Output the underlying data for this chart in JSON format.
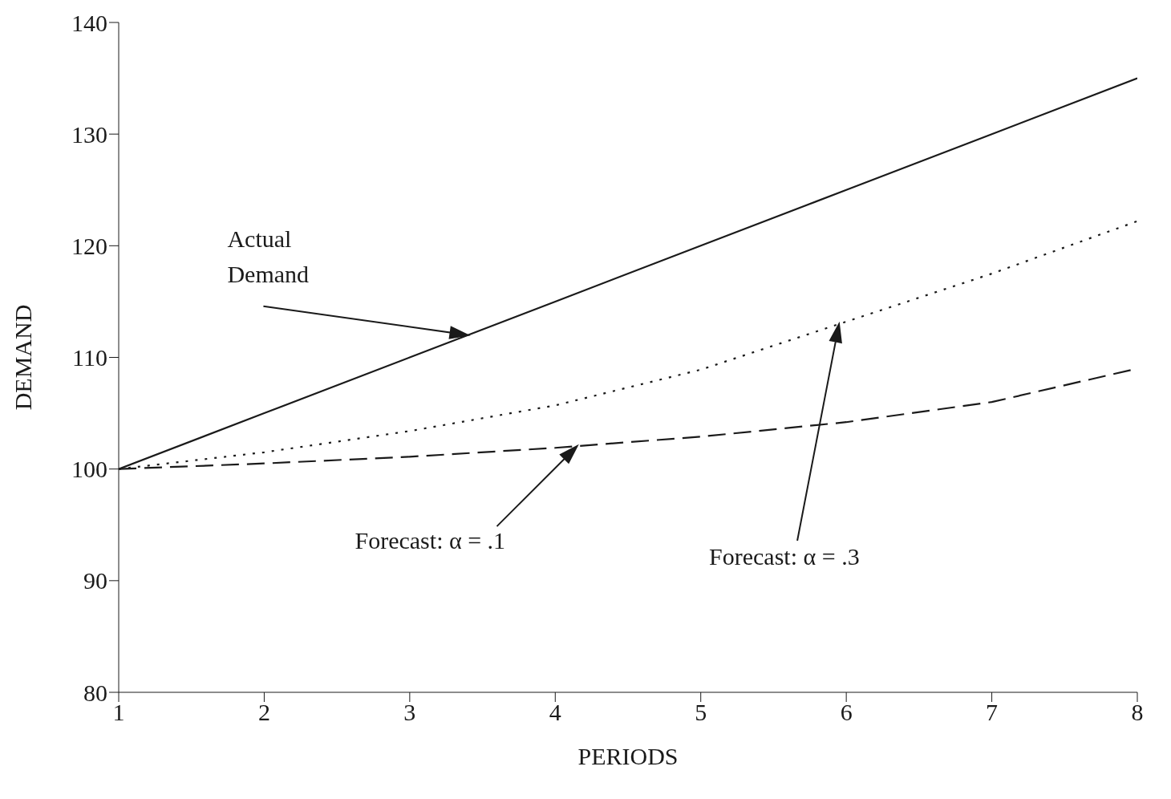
{
  "chart_data": {
    "type": "line",
    "xlabel": "PERIODS",
    "ylabel": "DEMAND",
    "x": [
      1,
      2,
      3,
      4,
      5,
      6,
      7,
      8
    ],
    "series": [
      {
        "color": "#1a1a1a",
        "line_style": "solid",
        "values": [
          100,
          105,
          110,
          115,
          120,
          125,
          130,
          135
        ]
      },
      {
        "color": "#1a1a1a",
        "line_style": "dotted",
        "values": [
          100,
          101.5,
          103.4,
          105.7,
          108.9,
          113.2,
          117.5,
          122.2
        ]
      },
      {
        "color": "#1a1a1a",
        "line_style": "dashed",
        "values": [
          100,
          100.5,
          101.1,
          101.9,
          102.9,
          104.2,
          106,
          109
        ]
      }
    ],
    "xlim": [
      1,
      8
    ],
    "xticks": [
      1,
      2,
      3,
      4,
      5,
      6,
      7,
      8
    ],
    "ylim": [
      80,
      140
    ],
    "yticks": [
      80,
      90,
      100,
      110,
      120,
      130,
      140
    ],
    "grid": false,
    "legend": false,
    "marker": "none",
    "annotations": [
      "Actual Demand",
      "Forecast: α = .1",
      "Forecast: α = .3"
    ]
  }
}
